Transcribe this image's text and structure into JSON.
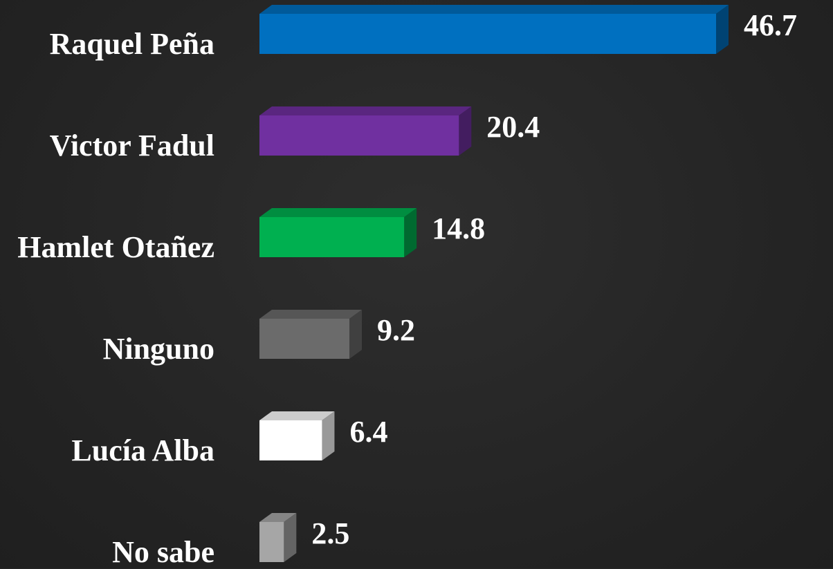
{
  "chart_data": {
    "type": "bar",
    "orientation": "horizontal",
    "categories": [
      "Raquel Peña",
      "Victor Fadul",
      "Hamlet Otañez",
      "Ninguno",
      "Lucía Alba",
      "No sabe"
    ],
    "values": [
      46.7,
      20.4,
      14.8,
      9.2,
      6.4,
      2.5
    ],
    "colors": [
      "#0070c0",
      "#7030a0",
      "#00b050",
      "#6b6b6b",
      "#ffffff",
      "#a6a6a6"
    ]
  }
}
